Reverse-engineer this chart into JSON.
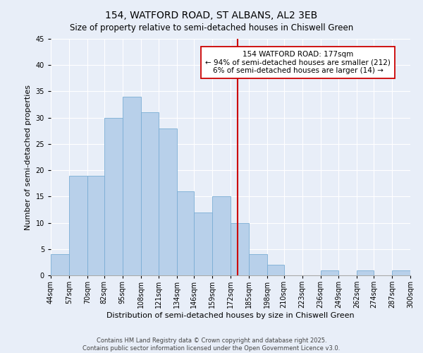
{
  "title": "154, WATFORD ROAD, ST ALBANS, AL2 3EB",
  "subtitle": "Size of property relative to semi-detached houses in Chiswell Green",
  "xlabel": "Distribution of semi-detached houses by size in Chiswell Green",
  "ylabel": "Number of semi-detached properties",
  "bin_edges": [
    44,
    57,
    70,
    82,
    95,
    108,
    121,
    134,
    146,
    159,
    172,
    185,
    198,
    210,
    223,
    236,
    249,
    262,
    274,
    287,
    300
  ],
  "counts": [
    4,
    19,
    19,
    30,
    34,
    31,
    28,
    16,
    12,
    15,
    10,
    4,
    2,
    0,
    0,
    1,
    0,
    1,
    0,
    1
  ],
  "bar_color": "#b8d0ea",
  "bar_edge_color": "#7aadd4",
  "vline_x": 177,
  "vline_color": "#cc0000",
  "annotation_text": "154 WATFORD ROAD: 177sqm\n← 94% of semi-detached houses are smaller (212)\n6% of semi-detached houses are larger (14) →",
  "annotation_box_color": "#ffffff",
  "annotation_box_edge": "#cc0000",
  "ylim": [
    0,
    45
  ],
  "yticks": [
    0,
    5,
    10,
    15,
    20,
    25,
    30,
    35,
    40,
    45
  ],
  "tick_labels": [
    "44sqm",
    "57sqm",
    "70sqm",
    "82sqm",
    "95sqm",
    "108sqm",
    "121sqm",
    "134sqm",
    "146sqm",
    "159sqm",
    "172sqm",
    "185sqm",
    "198sqm",
    "210sqm",
    "223sqm",
    "236sqm",
    "249sqm",
    "262sqm",
    "274sqm",
    "287sqm",
    "300sqm"
  ],
  "footnote1": "Contains HM Land Registry data © Crown copyright and database right 2025.",
  "footnote2": "Contains public sector information licensed under the Open Government Licence v3.0.",
  "bg_color": "#e8eef8",
  "plot_bg_color": "#e8eef8",
  "title_fontsize": 10,
  "subtitle_fontsize": 8.5,
  "axis_label_fontsize": 8,
  "tick_fontsize": 7,
  "footnote_fontsize": 6,
  "annotation_fontsize": 7.5
}
